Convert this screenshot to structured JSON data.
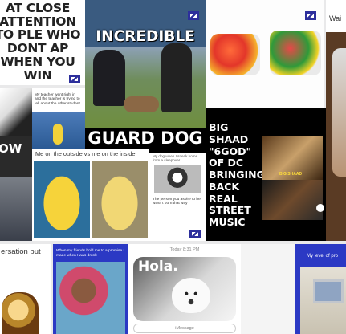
{
  "tiles": {
    "attention": {
      "caption": "AT CLOSE ATTENTION TO PLE WHO DONT AP WHEN YOU WIN"
    },
    "guard_dog": {
      "top_text": "INCREDIBLE",
      "bottom_text": "GUARD DOG"
    },
    "big_shaad": {
      "caption": "BIG SHAAD \"6GOD\" OF DC BRINGING BACK REAL STREET MUSIC",
      "inset_label": "BIG SHAAD"
    },
    "outside_inside": {
      "caption": "Me on the outside vs me on the inside"
    },
    "dog_tweet": {
      "header": "My dog when I sneak home from a sleepover",
      "caption": "The person you aspire to be wasn't born that way"
    },
    "left_edge": {
      "word": "OW"
    },
    "conversation": {
      "caption": "ersation but"
    },
    "promise_tweet": {
      "caption": "When my friends hold me to a promise I made when I was drunk"
    },
    "hola_chat": {
      "timestamp": "Today 8:31 PM",
      "bubble_text": "Hola.",
      "input_placeholder": "iMessage"
    },
    "level_of": {
      "caption": "My level of pro"
    },
    "wait": {
      "caption": "Wai"
    },
    "jello": {},
    "small_tweet": {
      "caption": "My teacher went right in and the teacher is trying to tell about the other student"
    }
  },
  "colors": {
    "badge": "#2d2f9c",
    "black": "#000000",
    "blue_tile": "#2b39c4"
  }
}
